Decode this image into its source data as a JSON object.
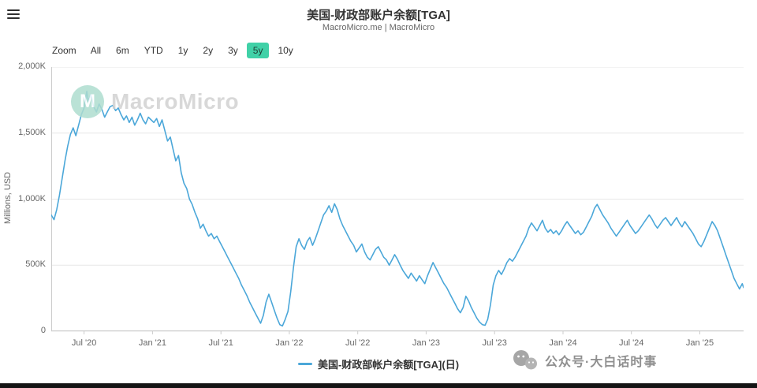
{
  "header": {
    "title": "美国-财政部账户余额[TGA]",
    "subtitle": "MacroMicro.me | MacroMicro"
  },
  "toolbar": {
    "zoom_label": "Zoom",
    "range_buttons": [
      "All",
      "6m",
      "YTD",
      "1y",
      "2y",
      "3y",
      "5y",
      "10y"
    ],
    "selected_range": "5y",
    "selected_bg_color": "#40d1a7"
  },
  "watermark": {
    "brand": "MacroMicro",
    "logo_letter": "M"
  },
  "legend": {
    "label": "美国-财政部帐户余额[TGA](日)",
    "color": "#4ba7d9"
  },
  "footer_watermark": {
    "text": "公众号·大白话时事"
  },
  "icons": {
    "menu": "hamburger-menu",
    "footer": "wechat-chat-bubbles"
  },
  "chart_data": {
    "type": "line",
    "title": "美国-财政部账户余额[TGA]",
    "series_name": "美国-财政部帐户余额[TGA](日)",
    "ylabel": "Millions, USD",
    "y_unit": "values in K = thousands of millions USD",
    "ylim": [
      0,
      2000
    ],
    "ytick_values": [
      0,
      500,
      1000,
      1500,
      2000
    ],
    "ytick_labels": [
      "0",
      "500K",
      "1,000K",
      "1,500K",
      "2,000K"
    ],
    "xtick_values": [
      2020.5,
      2021.0,
      2021.5,
      2022.0,
      2022.5,
      2023.0,
      2023.5,
      2024.0,
      2024.5,
      2025.0
    ],
    "xtick_labels": [
      "Jul '20",
      "Jan '21",
      "Jul '21",
      "Jan '22",
      "Jul '22",
      "Jan '23",
      "Jul '23",
      "Jan '24",
      "Jul '24",
      "Jan '25"
    ],
    "x_range": [
      2020.26,
      2025.32
    ],
    "grid": "horizontal",
    "legend_position": "bottom-center",
    "line_color": "#4ba7d9",
    "points": [
      [
        2020.26,
        880
      ],
      [
        2020.28,
        845
      ],
      [
        2020.3,
        920
      ],
      [
        2020.32,
        1030
      ],
      [
        2020.34,
        1160
      ],
      [
        2020.36,
        1290
      ],
      [
        2020.38,
        1400
      ],
      [
        2020.4,
        1490
      ],
      [
        2020.42,
        1540
      ],
      [
        2020.44,
        1480
      ],
      [
        2020.46,
        1560
      ],
      [
        2020.48,
        1640
      ],
      [
        2020.5,
        1690
      ],
      [
        2020.52,
        1817
      ],
      [
        2020.53,
        1740
      ],
      [
        2020.55,
        1790
      ],
      [
        2020.57,
        1700
      ],
      [
        2020.59,
        1660
      ],
      [
        2020.61,
        1720
      ],
      [
        2020.63,
        1680
      ],
      [
        2020.65,
        1620
      ],
      [
        2020.67,
        1660
      ],
      [
        2020.69,
        1700
      ],
      [
        2020.71,
        1710
      ],
      [
        2020.73,
        1670
      ],
      [
        2020.75,
        1690
      ],
      [
        2020.77,
        1640
      ],
      [
        2020.79,
        1600
      ],
      [
        2020.81,
        1630
      ],
      [
        2020.83,
        1580
      ],
      [
        2020.85,
        1620
      ],
      [
        2020.87,
        1560
      ],
      [
        2020.89,
        1600
      ],
      [
        2020.91,
        1650
      ],
      [
        2020.93,
        1600
      ],
      [
        2020.95,
        1570
      ],
      [
        2020.97,
        1620
      ],
      [
        2020.99,
        1600
      ],
      [
        2021.01,
        1580
      ],
      [
        2021.03,
        1610
      ],
      [
        2021.05,
        1550
      ],
      [
        2021.07,
        1600
      ],
      [
        2021.09,
        1520
      ],
      [
        2021.11,
        1440
      ],
      [
        2021.13,
        1470
      ],
      [
        2021.15,
        1380
      ],
      [
        2021.17,
        1290
      ],
      [
        2021.19,
        1330
      ],
      [
        2021.21,
        1200
      ],
      [
        2021.23,
        1120
      ],
      [
        2021.25,
        1080
      ],
      [
        2021.27,
        1000
      ],
      [
        2021.29,
        960
      ],
      [
        2021.31,
        900
      ],
      [
        2021.33,
        850
      ],
      [
        2021.35,
        780
      ],
      [
        2021.37,
        810
      ],
      [
        2021.39,
        760
      ],
      [
        2021.41,
        720
      ],
      [
        2021.43,
        740
      ],
      [
        2021.45,
        700
      ],
      [
        2021.47,
        720
      ],
      [
        2021.49,
        680
      ],
      [
        2021.51,
        640
      ],
      [
        2021.53,
        600
      ],
      [
        2021.55,
        560
      ],
      [
        2021.57,
        520
      ],
      [
        2021.59,
        480
      ],
      [
        2021.61,
        440
      ],
      [
        2021.63,
        400
      ],
      [
        2021.65,
        350
      ],
      [
        2021.67,
        310
      ],
      [
        2021.69,
        270
      ],
      [
        2021.71,
        220
      ],
      [
        2021.73,
        180
      ],
      [
        2021.75,
        140
      ],
      [
        2021.77,
        100
      ],
      [
        2021.79,
        60
      ],
      [
        2021.81,
        120
      ],
      [
        2021.83,
        220
      ],
      [
        2021.85,
        280
      ],
      [
        2021.87,
        220
      ],
      [
        2021.89,
        160
      ],
      [
        2021.91,
        100
      ],
      [
        2021.93,
        50
      ],
      [
        2021.95,
        40
      ],
      [
        2021.97,
        90
      ],
      [
        2021.99,
        150
      ],
      [
        2022.01,
        300
      ],
      [
        2022.03,
        480
      ],
      [
        2022.05,
        640
      ],
      [
        2022.07,
        700
      ],
      [
        2022.09,
        650
      ],
      [
        2022.11,
        620
      ],
      [
        2022.13,
        680
      ],
      [
        2022.15,
        710
      ],
      [
        2022.17,
        650
      ],
      [
        2022.19,
        700
      ],
      [
        2022.21,
        760
      ],
      [
        2022.23,
        820
      ],
      [
        2022.25,
        880
      ],
      [
        2022.27,
        910
      ],
      [
        2022.29,
        950
      ],
      [
        2022.31,
        900
      ],
      [
        2022.33,
        965
      ],
      [
        2022.35,
        920
      ],
      [
        2022.37,
        850
      ],
      [
        2022.39,
        800
      ],
      [
        2022.41,
        760
      ],
      [
        2022.43,
        720
      ],
      [
        2022.45,
        680
      ],
      [
        2022.47,
        650
      ],
      [
        2022.49,
        600
      ],
      [
        2022.51,
        630
      ],
      [
        2022.53,
        660
      ],
      [
        2022.55,
        600
      ],
      [
        2022.57,
        560
      ],
      [
        2022.59,
        540
      ],
      [
        2022.61,
        580
      ],
      [
        2022.63,
        620
      ],
      [
        2022.65,
        640
      ],
      [
        2022.67,
        600
      ],
      [
        2022.69,
        560
      ],
      [
        2022.71,
        540
      ],
      [
        2022.73,
        500
      ],
      [
        2022.75,
        540
      ],
      [
        2022.77,
        580
      ],
      [
        2022.79,
        545
      ],
      [
        2022.81,
        500
      ],
      [
        2022.83,
        460
      ],
      [
        2022.85,
        430
      ],
      [
        2022.87,
        400
      ],
      [
        2022.89,
        440
      ],
      [
        2022.91,
        410
      ],
      [
        2022.93,
        380
      ],
      [
        2022.95,
        420
      ],
      [
        2022.97,
        390
      ],
      [
        2022.99,
        360
      ],
      [
        2023.01,
        420
      ],
      [
        2023.03,
        470
      ],
      [
        2023.05,
        520
      ],
      [
        2023.07,
        480
      ],
      [
        2023.09,
        440
      ],
      [
        2023.11,
        400
      ],
      [
        2023.13,
        360
      ],
      [
        2023.15,
        330
      ],
      [
        2023.17,
        290
      ],
      [
        2023.19,
        250
      ],
      [
        2023.21,
        210
      ],
      [
        2023.23,
        170
      ],
      [
        2023.25,
        140
      ],
      [
        2023.27,
        180
      ],
      [
        2023.29,
        265
      ],
      [
        2023.31,
        230
      ],
      [
        2023.33,
        180
      ],
      [
        2023.35,
        140
      ],
      [
        2023.37,
        100
      ],
      [
        2023.39,
        70
      ],
      [
        2023.41,
        50
      ],
      [
        2023.43,
        45
      ],
      [
        2023.45,
        90
      ],
      [
        2023.47,
        200
      ],
      [
        2023.49,
        350
      ],
      [
        2023.51,
        420
      ],
      [
        2023.53,
        460
      ],
      [
        2023.55,
        430
      ],
      [
        2023.57,
        470
      ],
      [
        2023.59,
        520
      ],
      [
        2023.61,
        550
      ],
      [
        2023.63,
        530
      ],
      [
        2023.65,
        560
      ],
      [
        2023.67,
        600
      ],
      [
        2023.69,
        640
      ],
      [
        2023.71,
        680
      ],
      [
        2023.73,
        720
      ],
      [
        2023.75,
        780
      ],
      [
        2023.77,
        820
      ],
      [
        2023.79,
        790
      ],
      [
        2023.81,
        760
      ],
      [
        2023.83,
        800
      ],
      [
        2023.85,
        840
      ],
      [
        2023.87,
        780
      ],
      [
        2023.89,
        750
      ],
      [
        2023.91,
        770
      ],
      [
        2023.93,
        740
      ],
      [
        2023.95,
        760
      ],
      [
        2023.97,
        730
      ],
      [
        2023.99,
        760
      ],
      [
        2024.01,
        800
      ],
      [
        2024.03,
        830
      ],
      [
        2024.05,
        800
      ],
      [
        2024.07,
        770
      ],
      [
        2024.09,
        740
      ],
      [
        2024.11,
        760
      ],
      [
        2024.13,
        730
      ],
      [
        2024.15,
        750
      ],
      [
        2024.17,
        790
      ],
      [
        2024.19,
        830
      ],
      [
        2024.21,
        870
      ],
      [
        2024.23,
        930
      ],
      [
        2024.25,
        960
      ],
      [
        2024.27,
        920
      ],
      [
        2024.29,
        880
      ],
      [
        2024.31,
        850
      ],
      [
        2024.33,
        820
      ],
      [
        2024.35,
        780
      ],
      [
        2024.37,
        750
      ],
      [
        2024.39,
        720
      ],
      [
        2024.41,
        750
      ],
      [
        2024.43,
        780
      ],
      [
        2024.45,
        810
      ],
      [
        2024.47,
        840
      ],
      [
        2024.49,
        800
      ],
      [
        2024.51,
        770
      ],
      [
        2024.53,
        740
      ],
      [
        2024.55,
        760
      ],
      [
        2024.57,
        790
      ],
      [
        2024.59,
        820
      ],
      [
        2024.61,
        850
      ],
      [
        2024.63,
        880
      ],
      [
        2024.65,
        850
      ],
      [
        2024.67,
        810
      ],
      [
        2024.69,
        780
      ],
      [
        2024.71,
        810
      ],
      [
        2024.73,
        840
      ],
      [
        2024.75,
        860
      ],
      [
        2024.77,
        830
      ],
      [
        2024.79,
        800
      ],
      [
        2024.81,
        830
      ],
      [
        2024.83,
        860
      ],
      [
        2024.85,
        820
      ],
      [
        2024.87,
        790
      ],
      [
        2024.89,
        830
      ],
      [
        2024.91,
        800
      ],
      [
        2024.93,
        770
      ],
      [
        2024.95,
        740
      ],
      [
        2024.97,
        700
      ],
      [
        2024.99,
        660
      ],
      [
        2025.01,
        640
      ],
      [
        2025.03,
        680
      ],
      [
        2025.05,
        730
      ],
      [
        2025.07,
        780
      ],
      [
        2025.09,
        830
      ],
      [
        2025.11,
        800
      ],
      [
        2025.13,
        760
      ],
      [
        2025.15,
        700
      ],
      [
        2025.17,
        640
      ],
      [
        2025.19,
        580
      ],
      [
        2025.21,
        520
      ],
      [
        2025.23,
        460
      ],
      [
        2025.25,
        400
      ],
      [
        2025.27,
        360
      ],
      [
        2025.29,
        320
      ],
      [
        2025.31,
        360
      ],
      [
        2025.32,
        330
      ]
    ]
  }
}
